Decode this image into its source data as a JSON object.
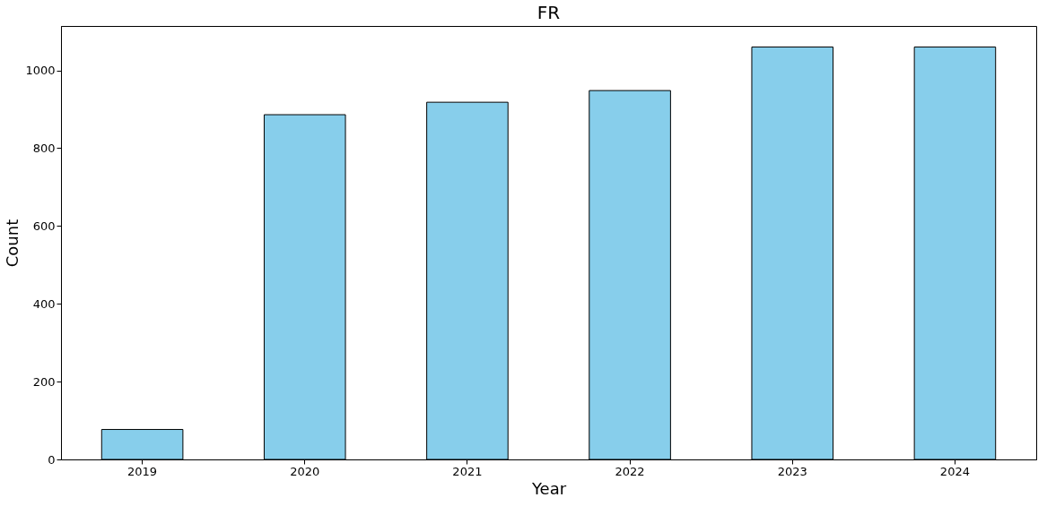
{
  "chart_data": {
    "type": "bar",
    "title": "FR",
    "xlabel": "Year",
    "ylabel": "Count",
    "categories": [
      "2019",
      "2020",
      "2021",
      "2022",
      "2023",
      "2024"
    ],
    "values": [
      77,
      886,
      918,
      948,
      1060,
      1060
    ],
    "color": "#87ceeb",
    "ylim": [
      0,
      1114
    ],
    "yticks": [
      0,
      200,
      400,
      600,
      800,
      1000
    ],
    "grid": false
  }
}
